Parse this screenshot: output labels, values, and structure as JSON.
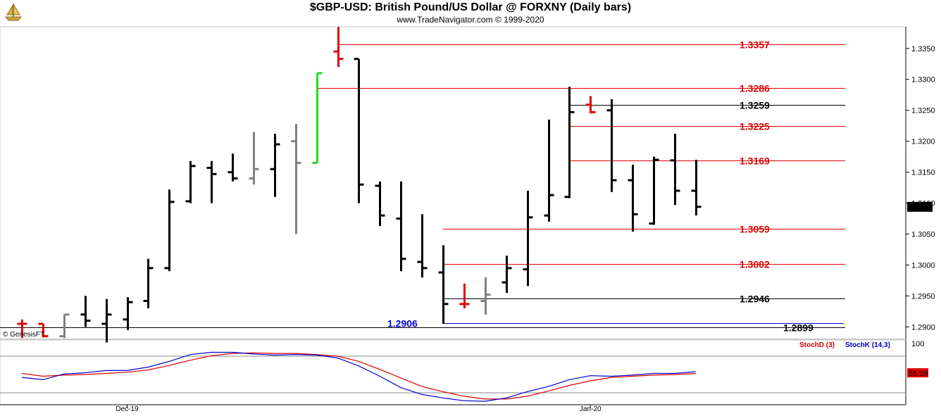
{
  "header": {
    "title": "$GBP-USD:  British Pound/US Dollar @ FORXNY  (Daily bars)",
    "subtitle": "www.TradeNavigator.com © 1999-2020"
  },
  "footer": {
    "watermark": "© GenesisFT"
  },
  "colors": {
    "up_bar": "#000000",
    "gray_bar": "#808080",
    "red_bar": "#e00000",
    "green_bar": "#22dd22",
    "red_level": "#e00000",
    "black_level": "#000000",
    "blue_level": "#0000dd",
    "stoch_d": "#dd0000",
    "stoch_k": "#0000cc"
  },
  "chart_data": [
    {
      "type": "ohlc",
      "x_labels": [
        "Dec-19",
        "Jan-20"
      ],
      "y_ticks": [
        1.29,
        1.295,
        1.3,
        1.305,
        1.31,
        1.315,
        1.32,
        1.325,
        1.33,
        1.335
      ],
      "ylim": [
        1.288,
        1.3385
      ],
      "last_price": "1.3094",
      "bars": [
        {
          "o": 1.2905,
          "h": 1.2912,
          "l": 1.2882,
          "c": 1.2905,
          "color": "red"
        },
        {
          "o": 1.2905,
          "h": 1.2905,
          "l": 1.2883,
          "c": 1.2885,
          "color": "red"
        },
        {
          "o": 1.2885,
          "h": 1.292,
          "l": 1.2882,
          "c": 1.292,
          "color": "gray"
        },
        {
          "o": 1.292,
          "h": 1.295,
          "l": 1.29,
          "c": 1.291,
          "color": "black"
        },
        {
          "o": 1.2905,
          "h": 1.2945,
          "l": 1.2875,
          "c": 1.292,
          "color": "black"
        },
        {
          "o": 1.2912,
          "h": 1.2948,
          "l": 1.2895,
          "c": 1.294,
          "color": "black"
        },
        {
          "o": 1.2942,
          "h": 1.301,
          "l": 1.293,
          "c": 1.2995,
          "color": "black"
        },
        {
          "o": 1.2995,
          "h": 1.3122,
          "l": 1.299,
          "c": 1.3102,
          "color": "black"
        },
        {
          "o": 1.3103,
          "h": 1.3168,
          "l": 1.31,
          "c": 1.316,
          "color": "black"
        },
        {
          "o": 1.3157,
          "h": 1.3168,
          "l": 1.31,
          "c": 1.3147,
          "color": "black"
        },
        {
          "o": 1.315,
          "h": 1.318,
          "l": 1.3135,
          "c": 1.314,
          "color": "black"
        },
        {
          "o": 1.314,
          "h": 1.3215,
          "l": 1.313,
          "c": 1.3155,
          "color": "gray"
        },
        {
          "o": 1.3155,
          "h": 1.3212,
          "l": 1.311,
          "c": 1.3195,
          "color": "black"
        },
        {
          "o": 1.32,
          "h": 1.3228,
          "l": 1.305,
          "c": 1.3165,
          "color": "gray"
        },
        {
          "o": 1.3165,
          "h": 1.331,
          "l": 1.3165,
          "c": 1.331,
          "color": "green"
        },
        {
          "o": 1.3345,
          "h": 1.3385,
          "l": 1.332,
          "c": 1.3333,
          "color": "red"
        },
        {
          "o": 1.3333,
          "h": 1.3333,
          "l": 1.31,
          "c": 1.313,
          "color": "black"
        },
        {
          "o": 1.3128,
          "h": 1.3135,
          "l": 1.3063,
          "c": 1.308,
          "color": "black"
        },
        {
          "o": 1.3075,
          "h": 1.3135,
          "l": 1.299,
          "c": 1.301,
          "color": "black"
        },
        {
          "o": 1.3005,
          "h": 1.3082,
          "l": 1.298,
          "c": 1.2995,
          "color": "black"
        },
        {
          "o": 1.2988,
          "h": 1.3032,
          "l": 1.2905,
          "c": 1.2937,
          "color": "black"
        },
        {
          "o": 1.2937,
          "h": 1.297,
          "l": 1.293,
          "c": 1.2937,
          "color": "red"
        },
        {
          "o": 1.2942,
          "h": 1.298,
          "l": 1.292,
          "c": 1.2952,
          "color": "gray"
        },
        {
          "o": 1.2972,
          "h": 1.3015,
          "l": 1.2955,
          "c": 1.2995,
          "color": "black"
        },
        {
          "o": 1.2993,
          "h": 1.312,
          "l": 1.2966,
          "c": 1.3077,
          "color": "black"
        },
        {
          "o": 1.308,
          "h": 1.3235,
          "l": 1.307,
          "c": 1.3113,
          "color": "black"
        },
        {
          "o": 1.311,
          "h": 1.3288,
          "l": 1.3108,
          "c": 1.3247,
          "color": "black"
        },
        {
          "o": 1.3259,
          "h": 1.3273,
          "l": 1.3245,
          "c": 1.3247,
          "color": "red"
        },
        {
          "o": 1.325,
          "h": 1.3268,
          "l": 1.3118,
          "c": 1.3137,
          "color": "black"
        },
        {
          "o": 1.3137,
          "h": 1.3162,
          "l": 1.3054,
          "c": 1.3082,
          "color": "black"
        },
        {
          "o": 1.3067,
          "h": 1.3175,
          "l": 1.3065,
          "c": 1.317,
          "color": "black"
        },
        {
          "o": 1.3169,
          "h": 1.3212,
          "l": 1.3097,
          "c": 1.312,
          "color": "black"
        },
        {
          "o": 1.312,
          "h": 1.317,
          "l": 1.308,
          "c": 1.3094,
          "color": "black"
        }
      ],
      "levels": [
        {
          "value": 1.3357,
          "label": "1.3357",
          "color": "red"
        },
        {
          "value": 1.3286,
          "label": "1.3286",
          "color": "red"
        },
        {
          "value": 1.3259,
          "label": "1.3259",
          "color": "black"
        },
        {
          "value": 1.3225,
          "label": "1.3225",
          "color": "red"
        },
        {
          "value": 1.3169,
          "label": "1.3169",
          "color": "red"
        },
        {
          "value": 1.3059,
          "label": "1.3059",
          "color": "red"
        },
        {
          "value": 1.3002,
          "label": "1.3002",
          "color": "red"
        },
        {
          "value": 1.2946,
          "label": "1.2946",
          "color": "black"
        },
        {
          "value": 1.2906,
          "label": "1.2906",
          "color": "blue"
        },
        {
          "value": 1.2899,
          "label": "1.2899",
          "color": "black"
        }
      ]
    },
    {
      "type": "line",
      "y_ticks": [
        100
      ],
      "ylim": [
        0,
        100
      ],
      "last_value": "55.39",
      "series": [
        {
          "name": "StochD (3)",
          "color": "stoch_d",
          "values": [
            55,
            50,
            52,
            53,
            55,
            57,
            61,
            69,
            78,
            86,
            90,
            91,
            90,
            90,
            88,
            85,
            76,
            62,
            47,
            32,
            23,
            15,
            10,
            10,
            15,
            24,
            34,
            42,
            48,
            50,
            52,
            53,
            55
          ]
        },
        {
          "name": "StochK (14,3)",
          "color": "stoch_k",
          "values": [
            48,
            44,
            54,
            56,
            60,
            60,
            66,
            76,
            88,
            92,
            92,
            89,
            87,
            88,
            87,
            82,
            68,
            50,
            30,
            18,
            12,
            7,
            6,
            12,
            23,
            32,
            44,
            51,
            50,
            52,
            55,
            55,
            58
          ]
        }
      ]
    }
  ]
}
